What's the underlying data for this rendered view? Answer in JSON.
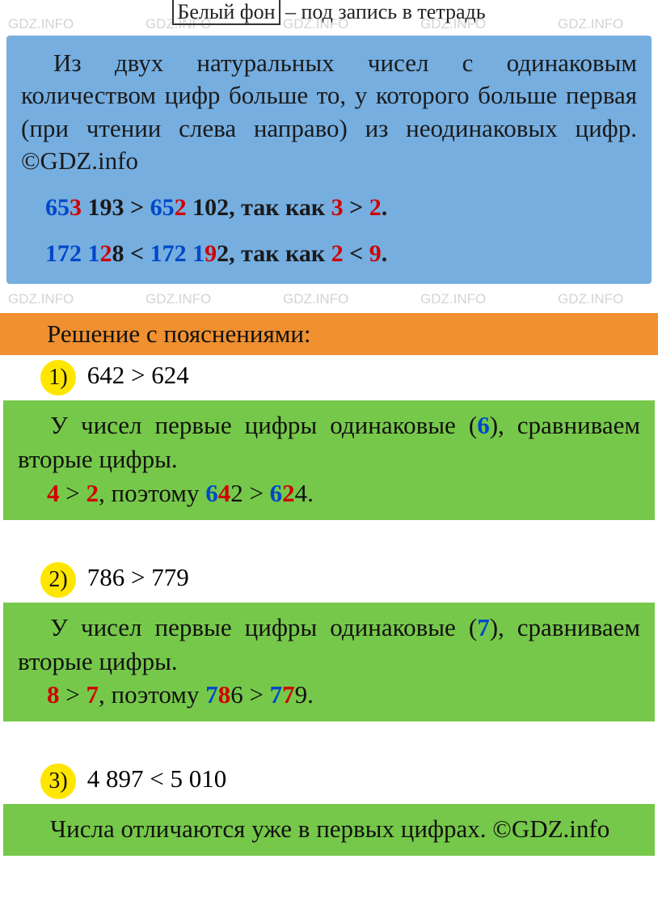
{
  "colors": {
    "rule_bg": "#76aee0",
    "header_bg": "#f09030",
    "explain_bg": "#76c84a",
    "circle_bg": "#ffe600",
    "blue": "#0048c8",
    "red": "#d00000",
    "watermark": "rgba(130,130,130,0.35)"
  },
  "watermark_text": "GDZ.INFO",
  "top_note": {
    "boxed": "Белый фон",
    "rest": " – под запись в тетрадь"
  },
  "rule": {
    "text": "Из двух натуральных чисел с оди­наковым количеством цифр больше то, у которого больше первая (при чтении слева направо) из неодинако­вых цифр.   ©GDZ.info",
    "ex1": {
      "a_blue": "65",
      "a_red": "3",
      "a_rest": " 193 > ",
      "b_blue": "65",
      "b_red": "2",
      "b_rest": " 102, так как ",
      "c_red1": "3",
      "c_mid": " > ",
      "c_red2": "2",
      "c_end": "."
    },
    "ex2": {
      "a_blue": "172 1",
      "a_red": "2",
      "a_rest": "8 < ",
      "b_blue": "172 1",
      "b_red": "9",
      "b_rest": "2, так как ",
      "c_red1": "2",
      "c_mid": " < ",
      "c_red2": "9",
      "c_end": "."
    }
  },
  "header": "Решение с пояснениями:",
  "problems": [
    {
      "num": "1)",
      "statement": " 642 > 624",
      "explain_l1_a": "У чисел первые цифры одинако­вые (",
      "explain_l1_digit": "6",
      "explain_l1_b": "), сравниваем вторые цифры.",
      "explain_l2": {
        "r1": "4",
        "m1": " > ",
        "r2": "2",
        "m2": ", поэтому ",
        "b1": "6",
        "r3": "4",
        "t1": "2 > ",
        "b2": "6",
        "r4": "2",
        "t2": "4."
      }
    },
    {
      "num": "2)",
      "statement": " 786 > 779",
      "explain_l1_a": "У чисел первые цифры одинако­вые (",
      "explain_l1_digit": "7",
      "explain_l1_b": "), сравниваем вторые цифры.",
      "explain_l2": {
        "r1": "8",
        "m1": " > ",
        "r2": "7",
        "m2": ", поэтому ",
        "b1": "7",
        "r3": "8",
        "t1": "6 > ",
        "b2": "7",
        "r4": "7",
        "t2": "9."
      }
    },
    {
      "num": "3)",
      "statement": " 4 897 < 5 010",
      "explain_full": "Числа отличаются уже в первых цифрах. ©GDZ.info"
    }
  ]
}
